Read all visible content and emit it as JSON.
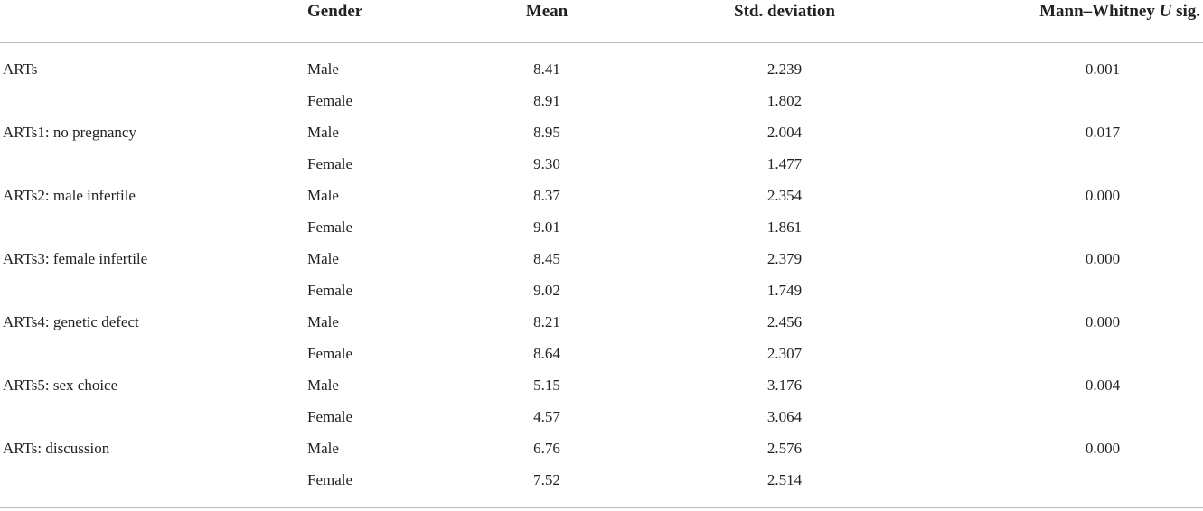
{
  "table": {
    "header": [
      "Gender",
      "Mean",
      "Std. deviation",
      [
        "Mann–Whitney",
        "U",
        "sig."
      ]
    ],
    "groups": [
      {
        "label": "ARTs",
        "sig": "0.001",
        "rows": [
          {
            "gender": "Male",
            "mean": "8.41",
            "sd": "2.239"
          },
          {
            "gender": "Female",
            "mean": "8.91",
            "sd": "1.802"
          }
        ]
      },
      {
        "label": "ARTs1: no pregnancy",
        "sig": "0.017",
        "rows": [
          {
            "gender": "Male",
            "mean": "8.95",
            "sd": "2.004"
          },
          {
            "gender": "Female",
            "mean": "9.30",
            "sd": "1.477"
          }
        ]
      },
      {
        "label": "ARTs2: male infertile",
        "sig": "0.000",
        "rows": [
          {
            "gender": "Male",
            "mean": "8.37",
            "sd": "2.354"
          },
          {
            "gender": "Female",
            "mean": "9.01",
            "sd": "1.861"
          }
        ]
      },
      {
        "label": "ARTs3: female infertile",
        "sig": "0.000",
        "rows": [
          {
            "gender": "Male",
            "mean": "8.45",
            "sd": "2.379"
          },
          {
            "gender": "Female",
            "mean": "9.02",
            "sd": "1.749"
          }
        ]
      },
      {
        "label": "ARTs4: genetic defect",
        "sig": "0.000",
        "rows": [
          {
            "gender": "Male",
            "mean": "8.21",
            "sd": "2.456"
          },
          {
            "gender": "Female",
            "mean": "8.64",
            "sd": "2.307"
          }
        ]
      },
      {
        "label": "ARTs5: sex choice",
        "sig": "0.004",
        "rows": [
          {
            "gender": "Male",
            "mean": "5.15",
            "sd": "3.176"
          },
          {
            "gender": "Female",
            "mean": "4.57",
            "sd": "3.064"
          }
        ]
      },
      {
        "label": "ARTs: discussion",
        "sig": "0.000",
        "rows": [
          {
            "gender": "Male",
            "mean": "6.76",
            "sd": "2.576"
          },
          {
            "gender": "Female",
            "mean": "7.52",
            "sd": "2.514"
          }
        ]
      }
    ]
  }
}
